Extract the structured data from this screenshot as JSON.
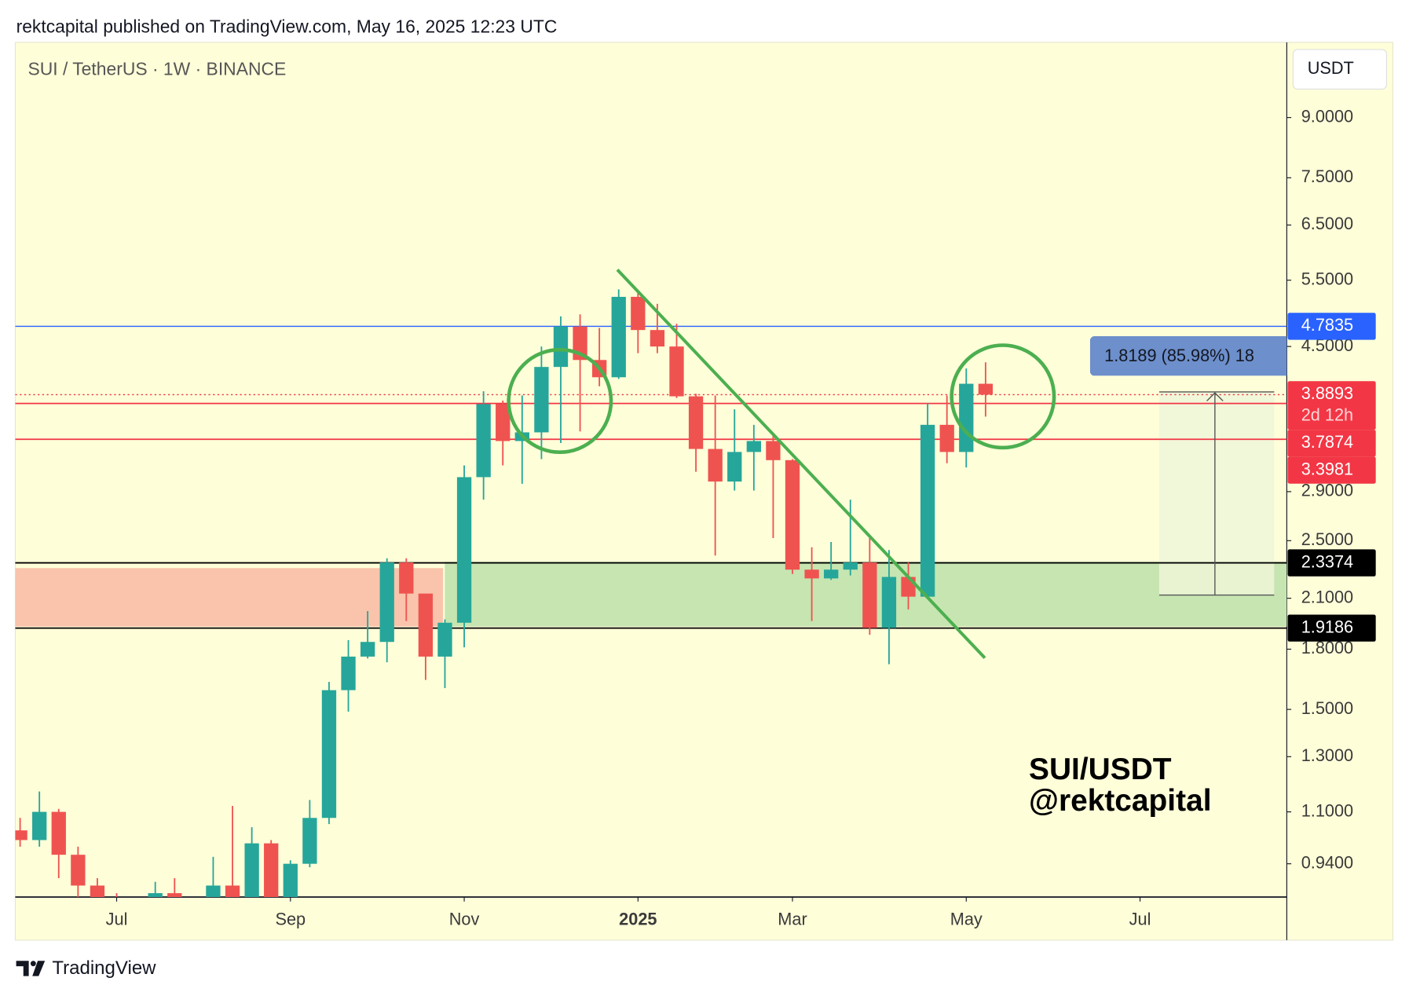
{
  "header": "rektcapital published on TradingView.com, May 16, 2025 12:23 UTC",
  "chart_data": {
    "type": "candlestick",
    "title": "SUI / TetherUS · 1W · BINANCE",
    "currency": "USDT",
    "watermark": [
      "SUI/USDT",
      "@rektcapital"
    ],
    "log_scale": true,
    "up_color": "#26a69a",
    "down_color": "#ef5350",
    "categories": [
      null,
      null,
      null,
      null,
      null,
      null,
      null,
      null,
      null,
      null,
      null,
      null,
      null,
      null,
      null,
      null,
      null,
      null,
      null,
      null,
      null,
      null,
      null,
      null,
      null,
      null,
      null,
      null,
      null,
      null,
      null,
      null,
      null,
      null,
      null,
      null,
      null,
      null,
      null,
      null,
      null,
      null,
      null,
      null,
      null,
      null,
      null,
      null,
      null,
      null,
      null
    ],
    "open": [
      1.04,
      1.01,
      1.1,
      0.966,
      0.88,
      0.83,
      0.8,
      0.82,
      0.86,
      0.84,
      0.8,
      0.88,
      0.8,
      1.0,
      0.82,
      0.94,
      1.08,
      1.59,
      1.76,
      1.84,
      2.34,
      2.13,
      1.76,
      1.95,
      3.03,
      3.78,
      3.38,
      3.47,
      4.23,
      4.78,
      4.32,
      4.1,
      5.23,
      4.73,
      4.5,
      3.87,
      3.3,
      2.99,
      3.27,
      3.38,
      3.19,
      2.29,
      2.23,
      2.29,
      2.34,
      1.92,
      2.24,
      2.11,
      3.55,
      3.27,
      4.02
    ],
    "high": [
      1.08,
      1.17,
      1.11,
      0.99,
      0.9,
      0.86,
      0.84,
      0.89,
      0.9,
      0.85,
      0.96,
      1.12,
      1.05,
      1.01,
      0.95,
      1.14,
      1.63,
      1.85,
      2.02,
      2.37,
      2.37,
      2.12,
      1.97,
      3.14,
      3.93,
      3.82,
      3.88,
      4.5,
      4.93,
      4.96,
      4.76,
      5.35,
      5.3,
      5.12,
      4.82,
      3.9,
      3.88,
      3.72,
      3.55,
      3.46,
      3.2,
      2.45,
      2.49,
      2.83,
      2.53,
      2.43,
      2.34,
      3.79,
      3.88,
      4.21,
      4.29
    ],
    "low": [
      0.99,
      0.99,
      0.9,
      0.84,
      0.8,
      0.76,
      0.74,
      0.8,
      0.8,
      0.76,
      0.78,
      0.78,
      0.79,
      0.8,
      0.8,
      0.93,
      1.06,
      1.49,
      1.75,
      1.73,
      1.96,
      1.64,
      1.6,
      1.81,
      2.83,
      3.14,
      2.97,
      3.2,
      3.36,
      3.48,
      3.99,
      4.08,
      4.41,
      4.41,
      3.85,
      3.08,
      2.39,
      2.91,
      2.91,
      2.52,
      2.26,
      1.96,
      2.22,
      2.25,
      1.88,
      1.72,
      2.03,
      2.1,
      3.16,
      3.12,
      3.64
    ],
    "close": [
      1.01,
      1.1,
      0.966,
      0.88,
      0.83,
      0.8,
      0.82,
      0.86,
      0.84,
      0.8,
      0.88,
      0.8,
      1.0,
      0.82,
      0.94,
      1.08,
      1.59,
      1.76,
      1.84,
      2.34,
      2.13,
      1.76,
      1.95,
      3.03,
      3.78,
      3.38,
      3.47,
      4.23,
      4.78,
      4.32,
      4.1,
      5.23,
      4.73,
      4.5,
      3.87,
      3.3,
      2.99,
      3.27,
      3.38,
      3.19,
      2.29,
      2.23,
      2.29,
      2.34,
      1.92,
      2.24,
      2.11,
      3.55,
      3.27,
      4.02,
      3.89
    ],
    "xlim": [
      -0.25,
      65.6
    ],
    "xticks": [
      {
        "value": 5,
        "label": "Jul"
      },
      {
        "value": 14,
        "label": "Sep"
      },
      {
        "value": 23,
        "label": "Nov"
      },
      {
        "value": 32,
        "label": "2025",
        "bold": true
      },
      {
        "value": 40,
        "label": "Mar"
      },
      {
        "value": 49,
        "label": "May"
      },
      {
        "value": 58,
        "label": "Jul"
      }
    ],
    "ylim": [
      0.85,
      11.3
    ],
    "yticks": [
      {
        "value": 9,
        "label": "9.0000"
      },
      {
        "value": 7.5,
        "label": "7.5000"
      },
      {
        "value": 6.5,
        "label": "6.5000"
      },
      {
        "value": 5.5,
        "label": "5.5000"
      },
      {
        "value": 4.5,
        "label": "4.5000"
      },
      {
        "value": 2.9,
        "label": "2.9000"
      },
      {
        "value": 2.5,
        "label": "2.5000"
      },
      {
        "value": 2.1,
        "label": "2.1000"
      },
      {
        "value": 1.8,
        "label": "1.8000"
      },
      {
        "value": 1.5,
        "label": "1.5000"
      },
      {
        "value": 1.3,
        "label": "1.3000"
      },
      {
        "value": 1.1,
        "label": "1.1000"
      },
      {
        "value": 0.94,
        "label": "0.9400"
      }
    ],
    "levels": [
      {
        "value": 4.7835,
        "color": "#2962ff"
      },
      {
        "value": 3.7874,
        "color": "#f23645"
      },
      {
        "value": 3.3981,
        "color": "#f23645"
      },
      {
        "value": 2.3374,
        "color": "#000000"
      },
      {
        "value": 1.9186,
        "color": "#000000"
      }
    ],
    "last_price": 3.8893,
    "last_price_color": "#f23645",
    "countdown": "2d 12h",
    "measure_label": "1.8189 (85.98%) 18"
  },
  "footer": "TradingView"
}
